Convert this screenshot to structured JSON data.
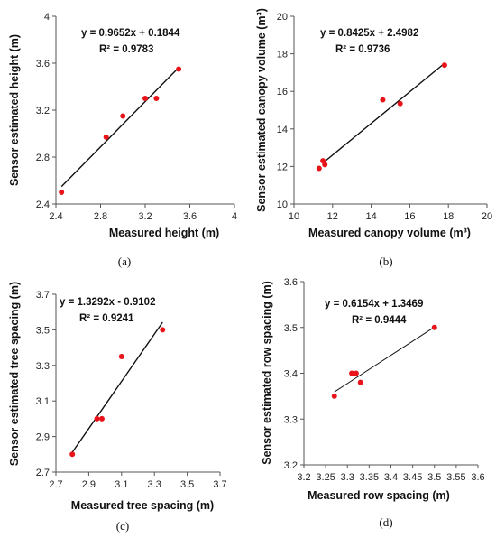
{
  "chart_data": [
    {
      "type": "scatter",
      "xlabel": "Measured height (m)",
      "ylabel": "Sensor estimated height (m)",
      "xlim": [
        2.4,
        4
      ],
      "ylim": [
        2.4,
        4
      ],
      "xticks": [
        "2.4",
        "2.8",
        "3.2",
        "3.6",
        "4"
      ],
      "yticks": [
        "2.4",
        "2.8",
        "3.2",
        "3.6",
        "4"
      ],
      "points": [
        [
          2.45,
          2.5
        ],
        [
          2.85,
          2.97
        ],
        [
          3.0,
          3.15
        ],
        [
          3.2,
          3.3
        ],
        [
          3.3,
          3.3
        ],
        [
          3.5,
          3.55
        ]
      ],
      "trendline": {
        "slope": 0.9652,
        "intercept": 0.1844,
        "x_range": [
          2.45,
          3.5
        ]
      },
      "equation": "y = 0.9652x + 0.1844",
      "r2": "R² = 0.9783",
      "caption": "(a)"
    },
    {
      "type": "scatter",
      "xlabel": "Measured canopy volume (m³)",
      "ylabel": "Sensor estimated canopy volume (m³)",
      "xlim": [
        10,
        20
      ],
      "ylim": [
        10,
        20
      ],
      "xticks": [
        "10",
        "12",
        "14",
        "16",
        "18",
        "20"
      ],
      "yticks": [
        "10",
        "12",
        "14",
        "16",
        "18",
        "20"
      ],
      "points": [
        [
          11.3,
          11.9
        ],
        [
          11.5,
          12.3
        ],
        [
          11.6,
          12.1
        ],
        [
          14.6,
          15.55
        ],
        [
          15.5,
          15.35
        ],
        [
          17.8,
          17.4
        ]
      ],
      "trendline": {
        "slope": 0.8425,
        "intercept": 2.4982,
        "x_range": [
          11.5,
          17.8
        ]
      },
      "equation": "y = 0.8425x + 2.4982",
      "r2": "R² = 0.9736",
      "caption": "(b)"
    },
    {
      "type": "scatter",
      "xlabel": "Measured tree spacing (m)",
      "ylabel": "Sensor estimated tree spacing (m)",
      "xlim": [
        2.7,
        3.7
      ],
      "ylim": [
        2.7,
        3.7
      ],
      "xticks": [
        "2.7",
        "2.9",
        "3.1",
        "3.3",
        "3.5",
        "3.7"
      ],
      "yticks": [
        "2.7",
        "2.9",
        "3.1",
        "3.3",
        "3.5",
        "3.7"
      ],
      "points": [
        [
          2.8,
          2.8
        ],
        [
          2.95,
          3.0
        ],
        [
          2.98,
          3.0
        ],
        [
          3.1,
          3.35
        ],
        [
          3.35,
          3.5
        ]
      ],
      "trendline": {
        "slope": 1.3292,
        "intercept": -0.9102,
        "x_range": [
          2.8,
          3.35
        ]
      },
      "equation": "y = 1.3292x - 0.9102",
      "r2": "R² = 0.9241",
      "caption": "(c)"
    },
    {
      "type": "scatter",
      "xlabel": "Measured row spacing (m)",
      "ylabel": "Sensor estimated row spacing (m)",
      "xlim": [
        3.2,
        3.6
      ],
      "ylim": [
        3.2,
        3.6
      ],
      "xticks": [
        "3.2",
        "3.25",
        "3.3",
        "3.35",
        "3.4",
        "3.45",
        "3.5",
        "3.55",
        "3.6"
      ],
      "yticks": [
        "3.2",
        "3.3",
        "3.4",
        "3.5",
        "3.6"
      ],
      "points": [
        [
          3.27,
          3.35
        ],
        [
          3.31,
          3.4
        ],
        [
          3.32,
          3.4
        ],
        [
          3.33,
          3.38
        ],
        [
          3.5,
          3.5
        ]
      ],
      "trendline": {
        "slope": 0.6154,
        "intercept": 1.3469,
        "x_range": [
          3.27,
          3.5
        ]
      },
      "equation": "y = 0.6154x + 1.3469",
      "r2": "R² = 0.9444",
      "caption": "(d)"
    }
  ],
  "style": {
    "point_color": "#e8141a",
    "line_color": "#111111",
    "tick_color": "#222222"
  }
}
